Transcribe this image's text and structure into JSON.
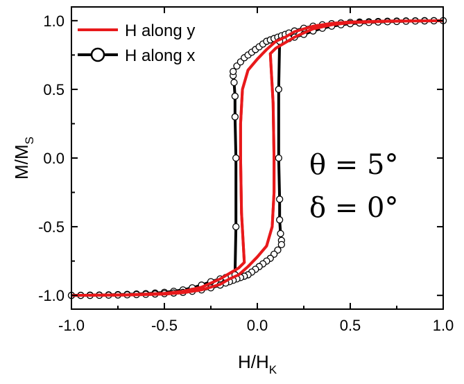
{
  "chart_data": {
    "type": "line",
    "xlabel": "H/H",
    "xlabel_sub": "K",
    "ylabel": "M/M",
    "ylabel_sub": "S",
    "xlim": [
      -1.0,
      1.0
    ],
    "ylim": [
      -1.1,
      1.1
    ],
    "x_ticks": [
      -1.0,
      -0.5,
      0.0,
      0.5,
      1.0
    ],
    "x_tick_labels": [
      "-1.0",
      "-0.5",
      "0.0",
      "0.5",
      "1.0"
    ],
    "y_ticks": [
      -1.0,
      -0.5,
      0.0,
      0.5,
      1.0
    ],
    "y_tick_labels": [
      "-1.0",
      "-0.5",
      "0.0",
      "0.5",
      "1.0"
    ],
    "grid": false,
    "legend_position": "top-left",
    "annotations": [
      "θ = 5°",
      "δ = 0°"
    ],
    "series": [
      {
        "name": "H along y",
        "color": "#e8191b",
        "marker": "none",
        "x": [
          -1.0,
          -0.7,
          -0.5,
          -0.4,
          -0.3,
          -0.2,
          -0.15,
          -0.1,
          -0.07,
          -0.085,
          -0.09,
          -0.09,
          -0.08,
          -0.05,
          0.0,
          0.05,
          0.1,
          0.15,
          0.2,
          0.3,
          0.4,
          0.5,
          0.7,
          1.0,
          0.7,
          0.5,
          0.4,
          0.3,
          0.2,
          0.15,
          0.1,
          0.07,
          0.085,
          0.09,
          0.09,
          0.08,
          0.05,
          0.0,
          -0.05,
          -0.1,
          -0.15,
          -0.2,
          -0.3,
          -0.4,
          -0.5,
          -0.7,
          -1.0
        ],
        "y": [
          -1.0,
          -0.995,
          -0.985,
          -0.97,
          -0.94,
          -0.88,
          -0.84,
          -0.8,
          -0.76,
          -0.4,
          0.0,
          0.25,
          0.5,
          0.64,
          0.72,
          0.79,
          0.85,
          0.88,
          0.92,
          0.96,
          0.98,
          0.99,
          0.997,
          1.0,
          0.995,
          0.985,
          0.97,
          0.94,
          0.88,
          0.84,
          0.8,
          0.76,
          0.4,
          0.0,
          -0.25,
          -0.5,
          -0.64,
          -0.72,
          -0.79,
          -0.85,
          -0.88,
          -0.92,
          -0.96,
          -0.98,
          -0.99,
          -0.997,
          -1.0
        ]
      },
      {
        "name": "H along x",
        "color": "#000000",
        "marker": "circle",
        "x": [
          -1.0,
          -0.95,
          -0.9,
          -0.85,
          -0.8,
          -0.75,
          -0.7,
          -0.65,
          -0.6,
          -0.55,
          -0.5,
          -0.45,
          -0.4,
          -0.35,
          -0.3,
          -0.25,
          -0.2,
          -0.17,
          -0.14,
          -0.12,
          -0.115,
          -0.115,
          -0.12,
          -0.12,
          -0.125,
          -0.13,
          -0.13,
          -0.11,
          -0.09,
          -0.07,
          -0.05,
          -0.03,
          -0.01,
          0.01,
          0.03,
          0.05,
          0.07,
          0.09,
          0.11,
          0.13,
          0.15,
          0.17,
          0.2,
          0.25,
          0.3,
          0.35,
          0.4,
          0.45,
          0.5,
          0.55,
          0.6,
          0.65,
          0.7,
          0.75,
          0.8,
          0.85,
          0.9,
          0.95,
          1.0,
          0.95,
          0.9,
          0.85,
          0.8,
          0.75,
          0.7,
          0.65,
          0.6,
          0.55,
          0.5,
          0.45,
          0.4,
          0.35,
          0.3,
          0.25,
          0.2,
          0.17,
          0.14,
          0.12,
          0.115,
          0.115,
          0.12,
          0.12,
          0.125,
          0.13,
          0.13,
          0.11,
          0.09,
          0.07,
          0.05,
          0.03,
          0.01,
          -0.01,
          -0.03,
          -0.05,
          -0.07,
          -0.09,
          -0.11,
          -0.13,
          -0.15,
          -0.17,
          -0.2,
          -0.25,
          -0.3,
          -0.35,
          -0.4,
          -0.45,
          -0.5,
          -0.55,
          -0.6,
          -0.65,
          -0.7,
          -0.75,
          -0.8,
          -0.85,
          -0.9,
          -0.95,
          -1.0
        ],
        "y": [
          -1.0,
          -0.999,
          -0.998,
          -0.997,
          -0.996,
          -0.994,
          -0.992,
          -0.99,
          -0.987,
          -0.983,
          -0.978,
          -0.97,
          -0.96,
          -0.945,
          -0.925,
          -0.9,
          -0.88,
          -0.87,
          -0.86,
          -0.85,
          -0.5,
          0.0,
          0.3,
          0.45,
          0.55,
          0.6,
          0.63,
          0.67,
          0.7,
          0.73,
          0.75,
          0.77,
          0.79,
          0.81,
          0.83,
          0.85,
          0.86,
          0.87,
          0.88,
          0.89,
          0.9,
          0.91,
          0.925,
          0.945,
          0.96,
          0.97,
          0.978,
          0.983,
          0.987,
          0.99,
          0.992,
          0.994,
          0.996,
          0.997,
          0.998,
          0.999,
          1.0,
          1.0,
          1.0,
          0.999,
          0.998,
          0.997,
          0.996,
          0.994,
          0.992,
          0.99,
          0.987,
          0.983,
          0.978,
          0.97,
          0.96,
          0.945,
          0.925,
          0.9,
          0.88,
          0.87,
          0.86,
          0.85,
          0.5,
          0.0,
          -0.3,
          -0.45,
          -0.55,
          -0.6,
          -0.63,
          -0.67,
          -0.7,
          -0.73,
          -0.75,
          -0.77,
          -0.79,
          -0.81,
          -0.83,
          -0.85,
          -0.86,
          -0.87,
          -0.88,
          -0.89,
          -0.9,
          -0.91,
          -0.925,
          -0.945,
          -0.96,
          -0.97,
          -0.978,
          -0.983,
          -0.987,
          -0.99,
          -0.992,
          -0.994,
          -0.996,
          -0.997,
          -0.998,
          -0.999,
          -1.0,
          -1.0,
          -1.0
        ]
      }
    ]
  }
}
